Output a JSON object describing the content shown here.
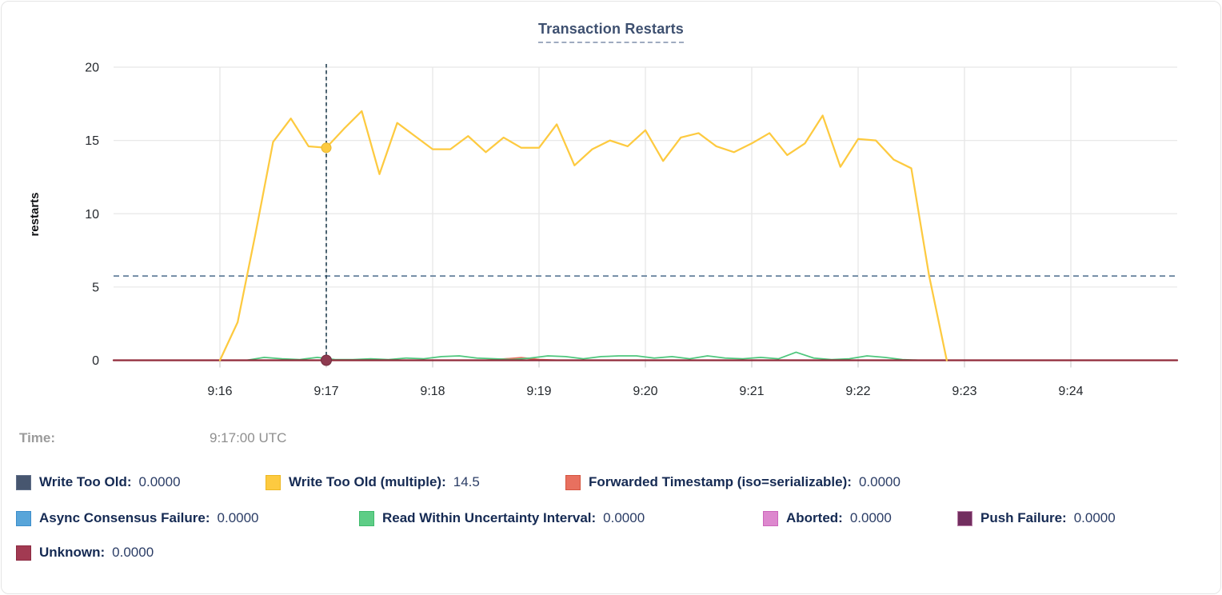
{
  "time_row": {
    "label": "Time:",
    "value": "9:17:00 UTC"
  },
  "legend": {
    "rows": [
      {
        "items": [
          {
            "label": "Write Too Old:",
            "value": "0.0000",
            "color": "#47566f",
            "border": "#5f6e88"
          },
          {
            "label": "Write Too Old (multiple):",
            "value": "14.5",
            "color": "#fdca40",
            "border": "#edb722"
          },
          {
            "label": "Forwarded Timestamp (iso=serializable):",
            "value": "0.0000",
            "color": "#e8705f",
            "border": "#d4543f"
          }
        ]
      },
      {
        "items": [
          {
            "label": "Async Consensus Failure:",
            "value": "0.0000",
            "color": "#58a5d9",
            "border": "#3d8ecb"
          },
          {
            "label": "Read Within Uncertainty Interval:",
            "value": "0.0000",
            "color": "#5ecd86",
            "border": "#3fba6c"
          },
          {
            "label": "Aborted:",
            "value": "0.0000",
            "color": "#dd88ce",
            "border": "#cc66bb"
          },
          {
            "label": "Push Failure:",
            "value": "0.0000",
            "color": "#722e5f",
            "border": "#b97fa7"
          }
        ]
      },
      {
        "items": [
          {
            "label": "Unknown:",
            "value": "0.0000",
            "color": "#a23a52",
            "border": "#8c2a41"
          }
        ]
      }
    ]
  },
  "chart_data": {
    "type": "line",
    "title": "Transaction Restarts",
    "ylabel": "restarts",
    "xlabel": "",
    "ylim": [
      0,
      20
    ],
    "y_ticks": [
      0,
      5,
      10,
      15,
      20
    ],
    "x_domain_seconds": [
      0,
      600
    ],
    "x_ticks": [
      {
        "t": 60,
        "label": "9:16"
      },
      {
        "t": 120,
        "label": "9:17"
      },
      {
        "t": 180,
        "label": "9:18"
      },
      {
        "t": 240,
        "label": "9:19"
      },
      {
        "t": 300,
        "label": "9:20"
      },
      {
        "t": 360,
        "label": "9:21"
      },
      {
        "t": 420,
        "label": "9:22"
      },
      {
        "t": 480,
        "label": "9:23"
      },
      {
        "t": 540,
        "label": "9:24"
      }
    ],
    "grid": true,
    "legend_position": "bottom",
    "threshold_line_value": 5.75,
    "cursor": {
      "t": 120,
      "time_label": "9:17:00 UTC",
      "points": [
        {
          "series": "Write Too Old (multiple)",
          "v": 14.5,
          "color": "#fdca40",
          "stroke": "#e7b52c",
          "r": 6
        },
        {
          "series": "Unknown",
          "v": 0,
          "color": "#8e3a50",
          "stroke": "#732c3e",
          "r": 6.5
        }
      ]
    },
    "series": [
      {
        "name": "Write Too Old",
        "color": "#47566f",
        "width": 1.5,
        "points": [
          [
            0,
            0
          ],
          [
            600,
            0
          ]
        ]
      },
      {
        "name": "Async Consensus Failure",
        "color": "#58a5d9",
        "width": 1.5,
        "points": [
          [
            0,
            0
          ],
          [
            600,
            0
          ]
        ]
      },
      {
        "name": "Aborted",
        "color": "#dd88ce",
        "width": 1.5,
        "points": [
          [
            0,
            0
          ],
          [
            600,
            0
          ]
        ]
      },
      {
        "name": "Push Failure",
        "color": "#722e5f",
        "width": 1.5,
        "points": [
          [
            0,
            0
          ],
          [
            600,
            0
          ]
        ]
      },
      {
        "name": "Forwarded Timestamp (iso=serializable)",
        "color": "#e8705f",
        "width": 2,
        "points": [
          [
            0,
            0
          ],
          [
            210,
            0
          ],
          [
            222,
            0.1
          ],
          [
            230,
            0.18
          ],
          [
            240,
            0.05
          ],
          [
            250,
            0
          ],
          [
            600,
            0
          ]
        ]
      },
      {
        "name": "Read Within Uncertainty Interval",
        "color": "#4ec77d",
        "width": 1.75,
        "points": [
          [
            75,
            0
          ],
          [
            85,
            0.2
          ],
          [
            95,
            0.1
          ],
          [
            105,
            0.05
          ],
          [
            115,
            0.2
          ],
          [
            125,
            0.05
          ],
          [
            135,
            0.05
          ],
          [
            145,
            0.1
          ],
          [
            155,
            0.05
          ],
          [
            165,
            0.15
          ],
          [
            175,
            0.1
          ],
          [
            185,
            0.25
          ],
          [
            195,
            0.3
          ],
          [
            205,
            0.15
          ],
          [
            215,
            0.1
          ],
          [
            225,
            0.05
          ],
          [
            235,
            0.15
          ],
          [
            245,
            0.3
          ],
          [
            255,
            0.25
          ],
          [
            265,
            0.1
          ],
          [
            275,
            0.25
          ],
          [
            285,
            0.3
          ],
          [
            295,
            0.3
          ],
          [
            305,
            0.15
          ],
          [
            315,
            0.25
          ],
          [
            325,
            0.1
          ],
          [
            335,
            0.3
          ],
          [
            345,
            0.15
          ],
          [
            355,
            0.1
          ],
          [
            365,
            0.2
          ],
          [
            375,
            0.1
          ],
          [
            385,
            0.55
          ],
          [
            395,
            0.15
          ],
          [
            405,
            0.05
          ],
          [
            415,
            0.1
          ],
          [
            425,
            0.3
          ],
          [
            435,
            0.2
          ],
          [
            445,
            0.05
          ],
          [
            455,
            0
          ]
        ]
      },
      {
        "name": "Unknown",
        "color": "#902838",
        "width": 2.25,
        "points": [
          [
            0,
            0
          ],
          [
            600,
            0
          ]
        ]
      },
      {
        "name": "Write Too Old (multiple)",
        "color": "#fdca40",
        "width": 2.25,
        "points": [
          [
            60,
            0
          ],
          [
            70,
            2.6
          ],
          [
            80,
            8.6
          ],
          [
            90,
            14.9
          ],
          [
            100,
            16.5
          ],
          [
            110,
            14.6
          ],
          [
            120,
            14.5
          ],
          [
            130,
            15.8
          ],
          [
            140,
            17.0
          ],
          [
            150,
            12.7
          ],
          [
            160,
            16.2
          ],
          [
            170,
            15.3
          ],
          [
            180,
            14.4
          ],
          [
            190,
            14.4
          ],
          [
            200,
            15.3
          ],
          [
            210,
            14.2
          ],
          [
            220,
            15.2
          ],
          [
            230,
            14.5
          ],
          [
            240,
            14.5
          ],
          [
            250,
            16.1
          ],
          [
            260,
            13.3
          ],
          [
            270,
            14.4
          ],
          [
            280,
            15.0
          ],
          [
            290,
            14.6
          ],
          [
            300,
            15.7
          ],
          [
            310,
            13.6
          ],
          [
            320,
            15.2
          ],
          [
            330,
            15.5
          ],
          [
            340,
            14.6
          ],
          [
            350,
            14.2
          ],
          [
            360,
            14.8
          ],
          [
            370,
            15.5
          ],
          [
            380,
            14.0
          ],
          [
            390,
            14.8
          ],
          [
            400,
            16.7
          ],
          [
            410,
            13.2
          ],
          [
            420,
            15.1
          ],
          [
            430,
            15.0
          ],
          [
            440,
            13.7
          ],
          [
            450,
            13.1
          ],
          [
            460,
            5.8
          ],
          [
            470,
            0
          ]
        ]
      }
    ]
  }
}
